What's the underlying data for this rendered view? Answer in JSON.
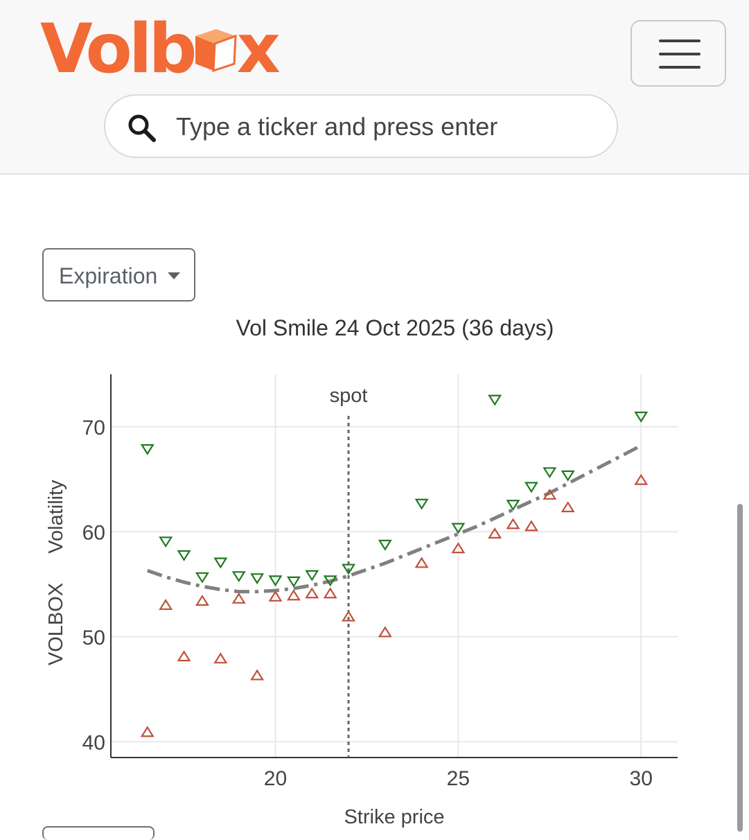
{
  "header": {
    "logo_text": "Volbox",
    "logo_colors": {
      "brand": "#f26a35",
      "box_top": "#f7a86f",
      "box_side": "#ffffff",
      "box_front": "#f26a35"
    },
    "menu_icon": "hamburger-icon",
    "search": {
      "placeholder": "Type a ticker and press enter",
      "value": "",
      "icon": "search-icon"
    }
  },
  "controls": {
    "expiration_label": "Expiration",
    "expiration_icon": "chevron-down-icon"
  },
  "chart_data": {
    "type": "scatter",
    "title": "Vol Smile 24 Oct 2025 (36 days)",
    "xlabel": "Strike price",
    "ylabel_lines": [
      "VOLBOX",
      "Volatility"
    ],
    "xlim": [
      15.5,
      31
    ],
    "ylim": [
      38.5,
      75
    ],
    "xticks": [
      20,
      25,
      30
    ],
    "yticks": [
      40,
      50,
      60,
      70
    ],
    "grid": true,
    "spot": {
      "label": "spot",
      "x": 22
    },
    "colors": {
      "ask": "#1f7a1f",
      "bid": "#c0503b",
      "fit": "#808080"
    },
    "series": [
      {
        "marker": "triangle-down",
        "points": [
          [
            16.5,
            67.9
          ],
          [
            17.0,
            59.1
          ],
          [
            17.5,
            57.8
          ],
          [
            18.0,
            55.7
          ],
          [
            18.5,
            57.1
          ],
          [
            19.0,
            55.8
          ],
          [
            19.5,
            55.6
          ],
          [
            20.0,
            55.4
          ],
          [
            20.5,
            55.3
          ],
          [
            21.0,
            55.9
          ],
          [
            21.5,
            55.4
          ],
          [
            22.0,
            56.5
          ],
          [
            23.0,
            58.8
          ],
          [
            24.0,
            62.7
          ],
          [
            25.0,
            60.4
          ],
          [
            26.0,
            72.6
          ],
          [
            26.5,
            62.6
          ],
          [
            27.0,
            64.3
          ],
          [
            27.5,
            65.7
          ],
          [
            28.0,
            65.4
          ],
          [
            30.0,
            71.0
          ]
        ]
      },
      {
        "marker": "triangle-up",
        "points": [
          [
            16.5,
            40.9
          ],
          [
            17.0,
            53.0
          ],
          [
            17.5,
            48.1
          ],
          [
            18.0,
            53.4
          ],
          [
            18.5,
            47.9
          ],
          [
            19.0,
            53.6
          ],
          [
            19.5,
            46.3
          ],
          [
            20.0,
            53.8
          ],
          [
            20.5,
            53.9
          ],
          [
            21.0,
            54.1
          ],
          [
            21.5,
            54.1
          ],
          [
            22.0,
            51.9
          ],
          [
            23.0,
            50.4
          ],
          [
            24.0,
            57.0
          ],
          [
            25.0,
            58.4
          ],
          [
            26.0,
            59.8
          ],
          [
            26.5,
            60.7
          ],
          [
            27.0,
            60.5
          ],
          [
            27.5,
            63.5
          ],
          [
            28.0,
            62.3
          ],
          [
            30.0,
            64.9
          ]
        ]
      },
      {
        "marker": "dashdot-line",
        "points": [
          [
            16.5,
            56.3
          ],
          [
            17.0,
            55.7
          ],
          [
            17.5,
            55.2
          ],
          [
            18.0,
            54.8
          ],
          [
            18.5,
            54.5
          ],
          [
            19.0,
            54.3
          ],
          [
            19.5,
            54.3
          ],
          [
            20.0,
            54.4
          ],
          [
            20.5,
            54.6
          ],
          [
            21.0,
            54.9
          ],
          [
            21.5,
            55.3
          ],
          [
            22.0,
            55.8
          ],
          [
            22.5,
            56.4
          ],
          [
            23.0,
            57.0
          ],
          [
            23.5,
            57.7
          ],
          [
            24.0,
            58.4
          ],
          [
            24.5,
            59.1
          ],
          [
            25.0,
            59.8
          ],
          [
            25.5,
            60.5
          ],
          [
            26.0,
            61.3
          ],
          [
            26.5,
            62.1
          ],
          [
            27.0,
            62.9
          ],
          [
            27.5,
            63.7
          ],
          [
            28.0,
            64.6
          ],
          [
            28.5,
            65.5
          ],
          [
            29.0,
            66.4
          ],
          [
            29.5,
            67.3
          ],
          [
            30.0,
            68.2
          ]
        ]
      }
    ]
  }
}
